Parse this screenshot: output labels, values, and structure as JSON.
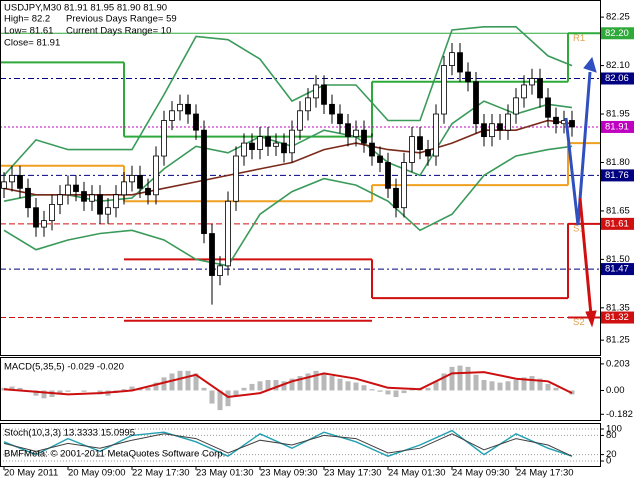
{
  "chart_data": [
    {
      "type": "candlestick",
      "info": [
        "USDJPY,M30  81.91 81.95 81.90 81.90",
        "High= 82.2",
        "Previous Days Range= 59",
        "Low= 81.61",
        "Current Days Range= 10",
        "Close= 81.91"
      ],
      "xlim": [
        -0.5,
        74.5
      ],
      "ylim": [
        81.204,
        82.303
      ],
      "yticks": [
        82.25,
        {
          "value": 82.1,
          "label": "82.10"
        },
        81.95,
        {
          "value": 81.8,
          "label": "81.80"
        },
        81.65,
        {
          "value": 81.5,
          "label": "81.50"
        },
        81.35,
        81.25
      ],
      "xticks": [
        {
          "value": 0,
          "label": "20 May 2011"
        },
        {
          "value": 8,
          "label": "20 May 09:00"
        },
        {
          "value": 16,
          "label": "22 May 17:30"
        },
        {
          "value": 24,
          "label": "23 May 01:30"
        },
        {
          "value": 32,
          "label": "23 May 09:30"
        },
        {
          "value": 40,
          "label": "23 May 17:30"
        },
        {
          "value": 48,
          "label": "24 May 01:30"
        },
        {
          "value": 56,
          "label": "24 May 09:30"
        },
        {
          "value": 64,
          "label": "24 May 17:30"
        }
      ],
      "open": [
        81.72,
        81.74,
        81.76,
        81.72,
        81.66,
        81.6,
        81.62,
        81.67,
        81.7,
        81.73,
        81.71,
        81.68,
        81.7,
        81.64,
        81.66,
        81.7,
        81.74,
        81.76,
        81.72,
        81.7,
        81.82,
        81.93,
        81.96,
        81.98,
        81.95,
        81.9,
        81.58,
        81.45,
        81.48,
        81.68,
        81.82,
        81.86,
        81.84,
        81.88,
        81.85,
        81.86,
        81.83,
        81.9,
        81.96,
        82.0,
        82.04,
        81.98,
        81.95,
        81.92,
        81.88,
        81.9,
        81.86,
        81.82,
        81.8,
        81.72,
        81.66,
        81.8,
        81.88,
        81.84,
        81.82,
        81.95,
        82.1,
        82.14,
        82.08,
        82.05,
        81.92,
        81.88,
        81.92,
        81.9,
        81.95,
        82.0,
        82.04,
        82.06,
        82.0,
        81.94,
        81.92,
        81.93
      ],
      "high": [
        81.77,
        81.79,
        81.79,
        81.75,
        81.69,
        81.65,
        81.7,
        81.73,
        81.76,
        81.76,
        81.74,
        81.73,
        81.73,
        81.69,
        81.73,
        81.77,
        81.79,
        81.79,
        81.75,
        81.85,
        81.96,
        81.99,
        82.01,
        82.01,
        81.98,
        81.93,
        81.61,
        81.51,
        81.71,
        81.85,
        81.89,
        81.89,
        81.91,
        81.91,
        81.89,
        81.89,
        81.93,
        81.99,
        82.03,
        82.07,
        82.07,
        82.01,
        81.98,
        81.95,
        81.93,
        81.93,
        81.89,
        81.85,
        81.83,
        81.75,
        81.83,
        81.91,
        81.91,
        81.87,
        81.98,
        82.13,
        82.17,
        82.17,
        82.11,
        82.08,
        81.95,
        81.95,
        81.95,
        81.98,
        82.03,
        82.07,
        82.09,
        82.09,
        82.03,
        81.97,
        81.96,
        81.96
      ],
      "low": [
        81.69,
        81.71,
        81.69,
        81.63,
        81.57,
        81.57,
        81.59,
        81.64,
        81.67,
        81.68,
        81.65,
        81.65,
        81.61,
        81.61,
        81.63,
        81.67,
        81.71,
        81.69,
        81.67,
        81.67,
        81.79,
        81.9,
        81.93,
        81.92,
        81.87,
        81.55,
        81.36,
        81.42,
        81.45,
        81.65,
        81.79,
        81.81,
        81.81,
        81.82,
        81.82,
        81.8,
        81.8,
        81.87,
        81.93,
        81.97,
        81.95,
        81.92,
        81.89,
        81.85,
        81.85,
        81.83,
        81.79,
        81.77,
        81.69,
        81.63,
        81.63,
        81.77,
        81.81,
        81.79,
        81.79,
        81.92,
        82.07,
        82.05,
        82.02,
        81.89,
        81.85,
        81.85,
        81.87,
        81.87,
        81.92,
        81.97,
        82.01,
        81.97,
        81.91,
        81.89,
        81.89,
        81.88
      ],
      "close": [
        81.74,
        81.76,
        81.72,
        81.66,
        81.6,
        81.62,
        81.67,
        81.7,
        81.73,
        81.71,
        81.68,
        81.7,
        81.64,
        81.66,
        81.7,
        81.74,
        81.76,
        81.72,
        81.7,
        81.82,
        81.93,
        81.96,
        81.98,
        81.95,
        81.9,
        81.58,
        81.45,
        81.48,
        81.68,
        81.82,
        81.86,
        81.84,
        81.88,
        81.85,
        81.86,
        81.83,
        81.9,
        81.96,
        82.0,
        82.04,
        81.98,
        81.95,
        81.92,
        81.88,
        81.9,
        81.86,
        81.82,
        81.8,
        81.72,
        81.66,
        81.8,
        81.88,
        81.84,
        81.82,
        81.95,
        82.1,
        82.14,
        82.08,
        82.05,
        81.92,
        81.88,
        81.92,
        81.9,
        81.95,
        82.0,
        82.04,
        82.06,
        82.0,
        81.94,
        81.92,
        81.93,
        81.91
      ],
      "overlay_x": [
        0,
        4,
        8,
        12,
        16,
        20,
        24,
        28,
        32,
        36,
        40,
        44,
        48,
        52,
        56,
        60,
        64,
        68,
        71
      ],
      "overlays": [
        {
          "color": "#3a9a5a",
          "values": [
            81.76,
            81.87,
            81.84,
            81.84,
            81.84,
            82.01,
            82.19,
            82.18,
            82.12,
            81.99,
            82.04,
            82.04,
            81.93,
            81.93,
            82.21,
            82.22,
            82.22,
            82.13,
            82.1
          ]
        },
        {
          "color": "#3a9a5a",
          "values": [
            81.59,
            81.53,
            81.56,
            81.58,
            81.59,
            81.56,
            81.5,
            81.48,
            81.64,
            81.71,
            81.75,
            81.73,
            81.68,
            81.59,
            81.64,
            81.76,
            81.82,
            81.84,
            81.85
          ]
        },
        {
          "color": "#3a9a5a",
          "values": [
            81.68,
            81.7,
            81.7,
            81.68,
            81.69,
            81.78,
            81.85,
            81.83,
            81.88,
            81.85,
            81.9,
            81.88,
            81.8,
            81.76,
            81.92,
            81.99,
            81.95,
            81.98,
            81.97
          ]
        },
        {
          "color": "#7a2a1a",
          "values": [
            81.72,
            81.7,
            81.7,
            81.7,
            81.7,
            81.72,
            81.74,
            81.76,
            81.78,
            81.8,
            81.84,
            81.86,
            81.84,
            81.83,
            81.86,
            81.9,
            81.9,
            81.93,
            81.92
          ]
        }
      ],
      "pivot_bounds": [
        -0.5,
        15,
        46,
        70.5,
        74.5
      ],
      "pivots": [
        {
          "color": "#2faa3a",
          "label": "R1",
          "values": [
            82.11,
            81.88,
            82.05,
            82.2
          ]
        },
        {
          "color": "#f0a020",
          "values": [
            81.79,
            81.68,
            81.73,
            81.86
          ]
        },
        {
          "color": "#d01010",
          "label": "S1",
          "values": [
            null,
            81.5,
            81.38,
            81.61
          ]
        },
        {
          "color": "#d01010",
          "label": "S2",
          "values": [
            null,
            81.31,
            null,
            81.32
          ]
        }
      ],
      "pivot_label_color": "#e0a050",
      "levels": [
        {
          "value": 82.2,
          "label": "82.20",
          "color": "#2faa3a",
          "dash": "none"
        },
        {
          "value": 82.06,
          "label": "82.06",
          "color": "#000080",
          "dash": "6 3 2 3"
        },
        {
          "value": 81.91,
          "label": "81.91",
          "color": "#c000c0",
          "dash": "2 2"
        },
        {
          "value": 81.76,
          "label": "81.76",
          "color": "#000080",
          "dash": "6 3 2 3"
        },
        {
          "value": 81.61,
          "label": "81.61",
          "color": "#d01010",
          "dash": "6 3"
        },
        {
          "value": 81.47,
          "label": "81.47",
          "color": "#000080",
          "dash": "6 3 2 3"
        },
        {
          "value": 81.32,
          "label": "81.32",
          "color": "#d01010",
          "dash": "6 3"
        }
      ]
    },
    {
      "type": "macd",
      "title": "MACD(5,35,5) -0.029 -0.020",
      "xlim": [
        -0.5,
        74.5
      ],
      "ylim": [
        -0.2256,
        0.248
      ],
      "yticks": [
        0.203,
        {
          "value": 0,
          "label": "0.00"
        },
        -0.182
      ],
      "histogram_color": "#b8b8b8",
      "histogram": [
        0.02,
        0.03,
        0.02,
        -0.01,
        -0.04,
        -0.06,
        -0.05,
        -0.03,
        -0.01,
        0.0,
        -0.01,
        0.0,
        -0.03,
        -0.04,
        -0.02,
        0.01,
        0.03,
        0.02,
        0.02,
        0.06,
        0.1,
        0.13,
        0.15,
        0.15,
        0.13,
        0.02,
        -0.1,
        -0.15,
        -0.12,
        -0.04,
        0.02,
        0.05,
        0.07,
        0.08,
        0.08,
        0.07,
        0.09,
        0.11,
        0.13,
        0.15,
        0.13,
        0.11,
        0.09,
        0.07,
        0.06,
        0.04,
        0.01,
        -0.01,
        -0.03,
        -0.05,
        -0.02,
        0.02,
        0.02,
        0.02,
        0.07,
        0.13,
        0.18,
        0.19,
        0.18,
        0.12,
        0.08,
        0.07,
        0.06,
        0.07,
        0.08,
        0.1,
        0.11,
        0.09,
        0.05,
        0.02,
        0.0,
        -0.03
      ],
      "signal": {
        "color": "#cc1010",
        "x": [
          0,
          4,
          8,
          12,
          16,
          20,
          24,
          28,
          32,
          36,
          40,
          44,
          48,
          52,
          56,
          60,
          64,
          68,
          71
        ],
        "values": [
          0.01,
          -0.01,
          -0.03,
          -0.02,
          0.0,
          0.06,
          0.12,
          -0.05,
          -0.02,
          0.07,
          0.13,
          0.09,
          0.02,
          0.01,
          0.13,
          0.14,
          0.09,
          0.07,
          -0.02
        ]
      }
    },
    {
      "type": "stochastic",
      "title": "Stoch(10,3,3) 13.3333 15.0995",
      "annotation": "BMFMeta: © 2001-2011 MetaQuotes Software Corp.",
      "xlim": [
        -0.5,
        74.5
      ],
      "ylim": [
        0,
        100
      ],
      "yticks": [
        100,
        80,
        20,
        0
      ],
      "x": [
        0,
        4,
        8,
        12,
        16,
        20,
        24,
        28,
        32,
        36,
        40,
        44,
        48,
        52,
        56,
        60,
        64,
        68,
        71
      ],
      "series": [
        {
          "color": "#20a0b0",
          "values": [
            60,
            20,
            70,
            30,
            80,
            90,
            60,
            15,
            85,
            40,
            90,
            60,
            15,
            50,
            95,
            20,
            85,
            40,
            15
          ]
        },
        {
          "color": "#404040",
          "values": [
            55,
            30,
            55,
            40,
            65,
            85,
            70,
            25,
            65,
            50,
            80,
            70,
            25,
            40,
            85,
            35,
            70,
            50,
            15
          ]
        }
      ]
    }
  ]
}
